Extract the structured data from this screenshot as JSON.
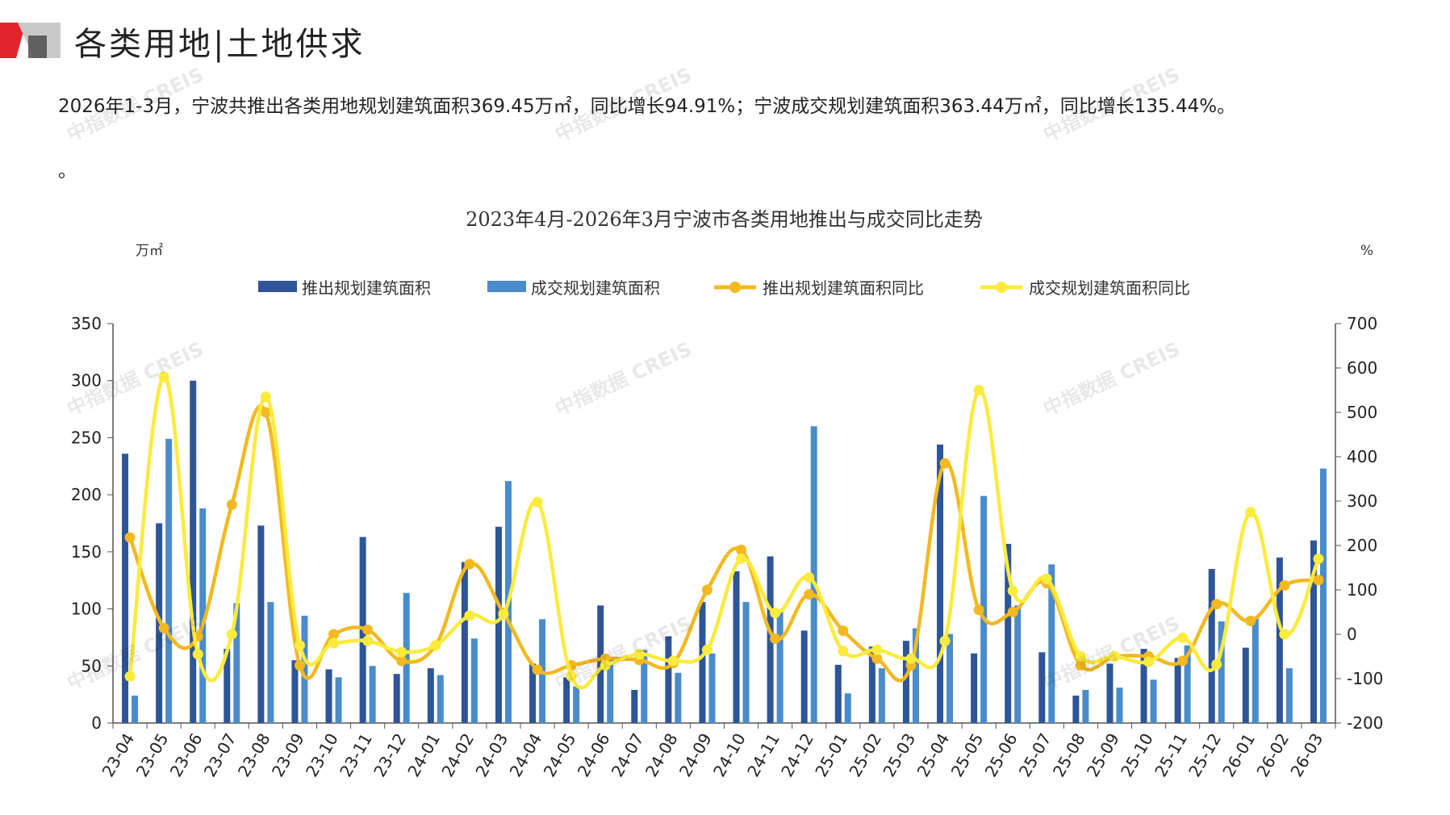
{
  "header": {
    "title": "各类用地|土地供求",
    "summary": "2026年1-3月，宁波共推出各类用地规划建筑面积369.45万㎡，同比增长94.91%；宁波成交规划建筑面积363.44万㎡，同比增长135.44%。",
    "summary_tail": "。"
  },
  "watermark": "中指数据 CREIS",
  "colors": {
    "supply_bar": "#2e5597",
    "deal_bar": "#4a8ccb",
    "supply_line": "#f3b920",
    "deal_line": "#fbeb3c",
    "logo_red": "#e0262c",
    "logo_gray": "#9b9b9b"
  },
  "chart_data": {
    "type": "bar",
    "title": "2023年4月-2026年3月宁波市各类用地推出与成交同比走势",
    "ylabel_left": "万㎡",
    "ylabel_right": "%",
    "ylim_left": [
      0,
      350
    ],
    "ylim_right": [
      -200,
      700
    ],
    "yticks_left": [
      0,
      50,
      100,
      150,
      200,
      250,
      300,
      350
    ],
    "yticks_right": [
      -200,
      -100,
      0,
      100,
      200,
      300,
      400,
      500,
      600,
      700
    ],
    "legend_position": "top-center",
    "categories": [
      "23-04",
      "23-05",
      "23-06",
      "23-07",
      "23-08",
      "23-09",
      "23-10",
      "23-11",
      "23-12",
      "24-01",
      "24-02",
      "24-03",
      "24-04",
      "24-05",
      "24-06",
      "24-07",
      "24-08",
      "24-09",
      "24-10",
      "24-11",
      "24-12",
      "25-01",
      "25-02",
      "25-03",
      "25-04",
      "25-05",
      "25-06",
      "25-07",
      "25-08",
      "25-09",
      "25-10",
      "25-11",
      "25-12",
      "26-01",
      "26-02",
      "26-03"
    ],
    "series": [
      {
        "name": "推出规划建筑面积",
        "kind": "bar",
        "axis": "left",
        "values": [
          236,
          175,
          300,
          65,
          173,
          55,
          47,
          163,
          43,
          48,
          141,
          172,
          52,
          40,
          103,
          29,
          76,
          106,
          133,
          146,
          81,
          51,
          67,
          72,
          244,
          61,
          157,
          62,
          24,
          52,
          65,
          57,
          135,
          66,
          145,
          160
        ]
      },
      {
        "name": "成交规划建筑面积",
        "kind": "bar",
        "axis": "left",
        "values": [
          24,
          249,
          188,
          105,
          106,
          94,
          40,
          50,
          114,
          42,
          74,
          212,
          91,
          32,
          58,
          64,
          44,
          61,
          106,
          98,
          260,
          26,
          48,
          83,
          78,
          199,
          103,
          139,
          29,
          31,
          38,
          68,
          89,
          93,
          48,
          223
        ]
      },
      {
        "name": "推出规划建筑面积同比",
        "kind": "line",
        "axis": "right",
        "values": [
          218,
          14,
          -5,
          292,
          500,
          -70,
          0,
          10,
          -60,
          -25,
          158,
          48,
          -80,
          -70,
          -55,
          -58,
          -65,
          100,
          190,
          -10,
          90,
          8,
          -55,
          -70,
          385,
          55,
          50,
          115,
          -70,
          -50,
          -50,
          -60,
          68,
          30,
          110,
          122
        ]
      },
      {
        "name": "成交规划建筑面积同比",
        "kind": "line",
        "axis": "right",
        "values": [
          -95,
          580,
          -45,
          0,
          535,
          -25,
          -20,
          -15,
          -40,
          -25,
          42,
          45,
          298,
          -95,
          -70,
          -45,
          -60,
          -35,
          170,
          48,
          128,
          -38,
          -35,
          -55,
          -15,
          550,
          98,
          125,
          -50,
          -50,
          -62,
          -8,
          -68,
          275,
          0,
          170
        ]
      }
    ]
  }
}
